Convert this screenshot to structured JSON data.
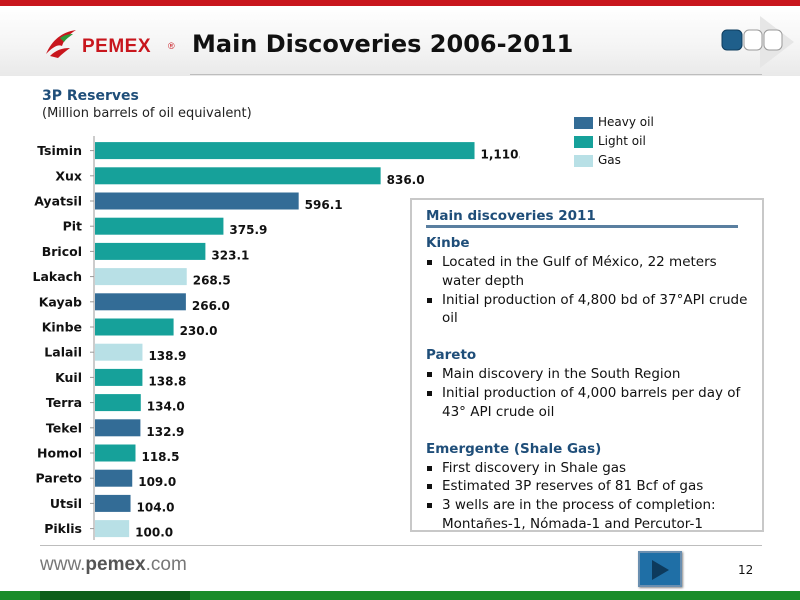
{
  "header": {
    "logo_text": "PEMEX",
    "logo_reg": "®",
    "title": "Main Discoveries 2006-2011"
  },
  "chart": {
    "title": "3P Reserves",
    "subtitle": "(Million barrels of oil equivalent)"
  },
  "legend": [
    {
      "label": "Heavy oil",
      "color": "#336c96"
    },
    {
      "label": "Light oil",
      "color": "#16a19a"
    },
    {
      "label": "Gas",
      "color": "#b8e0e6"
    }
  ],
  "chart_data": {
    "type": "bar",
    "orientation": "horizontal",
    "title": "3P Reserves",
    "subtitle": "(Million barrels of oil equivalent)",
    "categories": [
      "Tsimin",
      "Xux",
      "Ayatsil",
      "Pit",
      "Bricol",
      "Lakach",
      "Kayab",
      "Kinbe",
      "Lalail",
      "Kuil",
      "Terra",
      "Tekel",
      "Homol",
      "Pareto",
      "Utsil",
      "Piklis"
    ],
    "values": [
      1110.8,
      836.0,
      596.1,
      375.9,
      323.1,
      268.5,
      266.0,
      230.0,
      138.9,
      138.8,
      134.0,
      132.9,
      118.5,
      109.0,
      104.0,
      100.0
    ],
    "value_labels": [
      "1,110.8",
      "836.0",
      "596.1",
      "375.9",
      "323.1",
      "268.5",
      "266.0",
      "230.0",
      "138.9",
      "138.8",
      "134.0",
      "132.9",
      "118.5",
      "109.0",
      "104.0",
      "100.0"
    ],
    "types": [
      "Light oil",
      "Light oil",
      "Heavy oil",
      "Light oil",
      "Light oil",
      "Gas",
      "Heavy oil",
      "Light oil",
      "Gas",
      "Light oil",
      "Light oil",
      "Heavy oil",
      "Light oil",
      "Heavy oil",
      "Heavy oil",
      "Gas"
    ],
    "xlim": [
      0,
      1200
    ],
    "legend_position": "top-right",
    "grid": false
  },
  "info": {
    "heading": "Main discoveries 2011",
    "sections": [
      {
        "title": "Kinbe",
        "bullets": [
          "Located in the Gulf of México, 22 meters water depth",
          "Initial production of 4,800 bd of 37°API crude oil"
        ]
      },
      {
        "title": "Pareto",
        "bullets": [
          "Main discovery in the South Region",
          "Initial production of 4,000 barrels per day of 43° API crude oil"
        ]
      },
      {
        "title": "Emergente (Shale Gas)",
        "bullets": [
          "First discovery in Shale gas",
          "Estimated 3P reserves of 81 Bcf of gas",
          "3 wells are in the process of completion: Montañes-1, Nómada-1 and Percutor-1"
        ]
      }
    ]
  },
  "footer": {
    "url_prefix": "www.",
    "url_brand": "pemex",
    "url_suffix": ".com",
    "page_number": "12"
  },
  "icons": {
    "logo": "pemex-eagle-logo",
    "nav": "navigation-squares-icon",
    "next": "play-next-icon"
  }
}
